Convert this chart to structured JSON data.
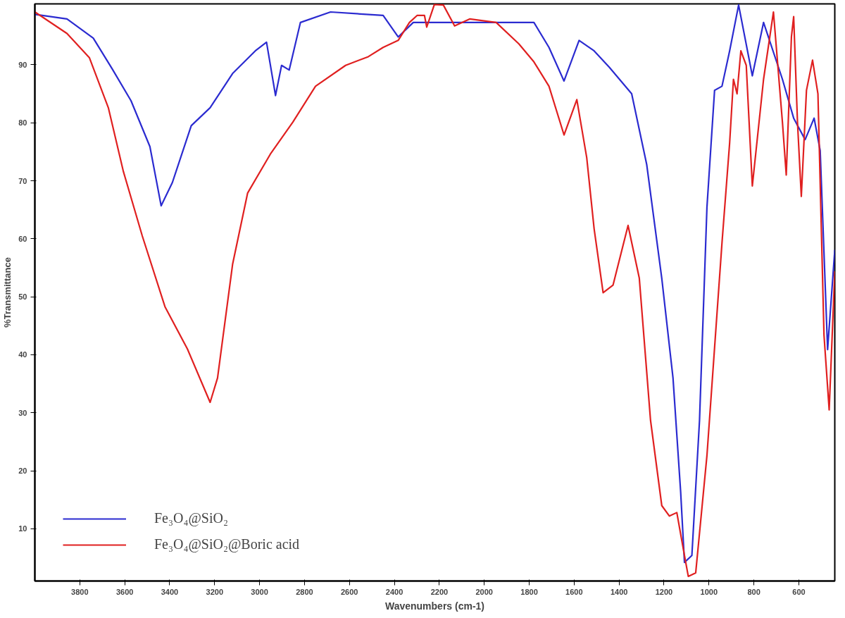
{
  "chart_data": {
    "type": "line",
    "xlabel": "Wavenumbers (cm-1)",
    "ylabel": "%Transmittance",
    "xlim": [
      4000,
      440
    ],
    "ylim": [
      1,
      100.5
    ],
    "xticks": [
      3800,
      3600,
      3400,
      3200,
      3000,
      2800,
      2600,
      2400,
      2200,
      2000,
      1800,
      1600,
      1400,
      1200,
      1000,
      800,
      600
    ],
    "yticks": [
      10,
      20,
      30,
      40,
      50,
      60,
      70,
      80,
      90
    ],
    "grid": false,
    "legend": "bottom left",
    "marker": "none",
    "line_style": "solid",
    "series": [
      {
        "name": "Fe₃O₄@SiO₂",
        "color": "#2b2bd0",
        "x": [
          4000,
          3857,
          3740,
          3656,
          3572,
          3488,
          3438,
          3388,
          3304,
          3220,
          3120,
          3019,
          2969,
          2929,
          2902,
          2868,
          2818,
          2684,
          2450,
          2383,
          2316,
          1779,
          1712,
          1645,
          1578,
          1511,
          1444,
          1344,
          1277,
          1210,
          1160,
          1126,
          1109,
          1076,
          1042,
          1009,
          975,
          942,
          908,
          868,
          807,
          757,
          673,
          623,
          572,
          532,
          505,
          472,
          440
        ],
        "values": [
          98.7,
          97.9,
          94.6,
          89.3,
          83.8,
          75.9,
          65.7,
          69.7,
          79.5,
          82.6,
          88.5,
          92.4,
          93.9,
          84.7,
          89.9,
          89.1,
          97.3,
          99.1,
          98.5,
          94.8,
          97.3,
          97.3,
          93.0,
          87.2,
          94.2,
          92.4,
          89.6,
          85.0,
          72.8,
          53.2,
          36.0,
          16.4,
          4.2,
          5.4,
          28.7,
          65.4,
          85.6,
          86.3,
          92.4,
          100.3,
          88.1,
          97.3,
          87.5,
          80.8,
          77.1,
          80.8,
          75.2,
          40.9,
          58.1
        ]
      },
      {
        "name": "Fe₃O₄@SiO₂@Boric acid",
        "color": "#e02020",
        "x": [
          4000,
          3857,
          3757,
          3673,
          3606,
          3522,
          3421,
          3321,
          3254,
          3220,
          3187,
          3120,
          3053,
          2952,
          2852,
          2751,
          2617,
          2516,
          2450,
          2383,
          2333,
          2299,
          2266,
          2256,
          2222,
          2182,
          2132,
          2065,
          1947,
          1846,
          1779,
          1712,
          1645,
          1588,
          1544,
          1511,
          1471,
          1427,
          1360,
          1310,
          1260,
          1210,
          1176,
          1143,
          1109,
          1092,
          1059,
          1009,
          942,
          908,
          891,
          875,
          858,
          834,
          807,
          757,
          713,
          673,
          656,
          633,
          623,
          606,
          589,
          566,
          539,
          515,
          488,
          465,
          440
        ],
        "values": [
          99.1,
          95.4,
          91.2,
          82.6,
          71.6,
          60.5,
          48.3,
          41.0,
          34.9,
          31.8,
          36.0,
          55.6,
          67.9,
          74.6,
          80.1,
          86.3,
          89.9,
          91.4,
          93.0,
          94.2,
          97.3,
          98.5,
          98.5,
          96.5,
          100.4,
          100.3,
          96.7,
          97.9,
          97.3,
          93.6,
          90.5,
          86.3,
          77.9,
          84.0,
          74.0,
          61.7,
          50.7,
          52.0,
          62.3,
          53.2,
          28.7,
          14.0,
          12.2,
          12.8,
          5.4,
          1.8,
          2.4,
          22.6,
          59.3,
          76.5,
          87.5,
          85.0,
          92.4,
          89.9,
          69.1,
          87.5,
          99.1,
          80.1,
          71.0,
          94.8,
          98.3,
          80.1,
          67.3,
          85.6,
          90.8,
          85.0,
          43.4,
          30.5,
          54.4
        ]
      }
    ]
  }
}
